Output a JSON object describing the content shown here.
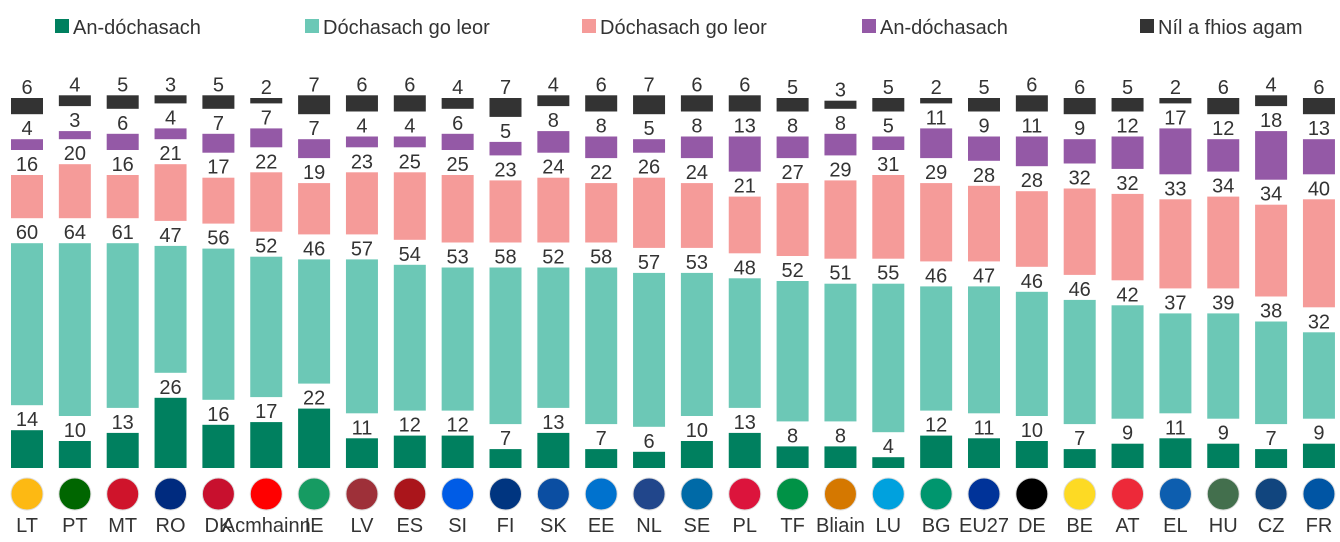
{
  "chart_data": {
    "type": "stacked_bar",
    "categories": [
      "LT",
      "PT",
      "MT",
      "RO",
      "DK",
      "Acmhainn",
      "IE",
      "LV",
      "ES",
      "SI",
      "FI",
      "SK",
      "EE",
      "NL",
      "SE",
      "PL",
      "TF",
      "Bliain",
      "LU",
      "BG",
      "EU27",
      "DE",
      "BE",
      "AT",
      "EL",
      "HU",
      "CZ",
      "FR"
    ],
    "series": [
      {
        "name": "An-dóchasach",
        "color": "#00805f",
        "values": [
          14,
          10,
          13,
          26,
          16,
          17,
          22,
          11,
          12,
          12,
          7,
          13,
          7,
          6,
          10,
          13,
          8,
          8,
          4,
          12,
          11,
          10,
          7,
          9,
          11,
          9,
          7,
          9
        ]
      },
      {
        "name": "Dóchasach go leor",
        "color": "#6cc8b6",
        "values": [
          60,
          64,
          61,
          47,
          56,
          52,
          46,
          57,
          54,
          53,
          58,
          52,
          58,
          57,
          53,
          48,
          52,
          51,
          55,
          46,
          47,
          46,
          46,
          42,
          37,
          39,
          38,
          32
        ]
      },
      {
        "name": "Dóchasach go leor",
        "color": "#f59b99",
        "values": [
          16,
          20,
          16,
          21,
          17,
          22,
          19,
          23,
          25,
          25,
          23,
          24,
          22,
          26,
          24,
          21,
          27,
          29,
          31,
          29,
          28,
          28,
          32,
          32,
          33,
          34,
          34,
          40
        ]
      },
      {
        "name": "An-dóchasach",
        "color": "#9459a6",
        "values": [
          4,
          3,
          6,
          4,
          7,
          7,
          7,
          4,
          4,
          6,
          5,
          8,
          8,
          5,
          8,
          13,
          8,
          8,
          5,
          11,
          9,
          11,
          9,
          12,
          17,
          12,
          18,
          13
        ]
      },
      {
        "name": "Níl a fhios agam",
        "color": "#333333",
        "values": [
          6,
          4,
          5,
          3,
          5,
          2,
          7,
          6,
          6,
          4,
          7,
          4,
          6,
          7,
          6,
          6,
          5,
          3,
          5,
          2,
          5,
          6,
          6,
          5,
          2,
          6,
          4,
          6
        ]
      }
    ]
  }
}
